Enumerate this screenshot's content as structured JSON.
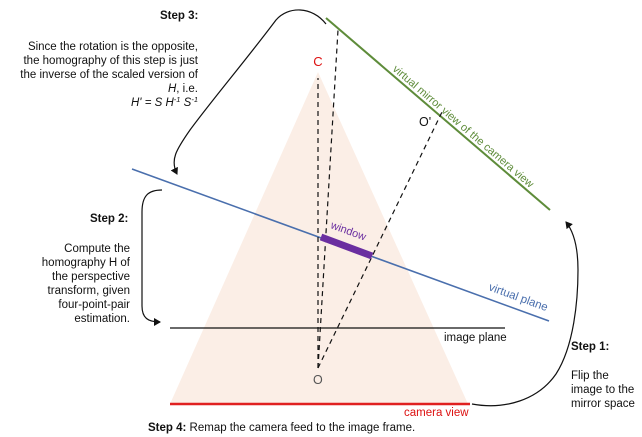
{
  "steps": {
    "step1": {
      "title": "Step 1:",
      "body": "Flip the image to the mirror space"
    },
    "step2": {
      "title": "Step 2:",
      "body": "Compute the homography H of the perspective transform, given four-point-pair estimation."
    },
    "step3": {
      "title": "Step 3:",
      "body_prefix": "Since the rotation is the opposite, the homography of this step is just the inverse of the scaled version of ",
      "body_var": "H",
      "body_suffix": ", i.e.",
      "eq_lhs": "H' = S H",
      "eq_sup1": "-1",
      "eq_mid": " S",
      "eq_sup2": "-1"
    },
    "step4": {
      "title": "Step 4:",
      "body": " Remap the camera feed to the image frame."
    }
  },
  "labels": {
    "c": "C",
    "o_prime": "O'",
    "o": "O",
    "window": "window",
    "virtual_plane": "virtual plane",
    "image_plane": "image plane",
    "camera_view": "camera view",
    "virtual_mirror_view": "virtual mirror view of the camera view"
  },
  "colors": {
    "triangle_fill": "#fbeee6",
    "virtual_plane": "#4a6fad",
    "window": "#6a2ea0",
    "camera_view": "#e02020",
    "label_red": "#dd1111",
    "mirror_green": "#5e8c3a",
    "lines": "#111111"
  }
}
